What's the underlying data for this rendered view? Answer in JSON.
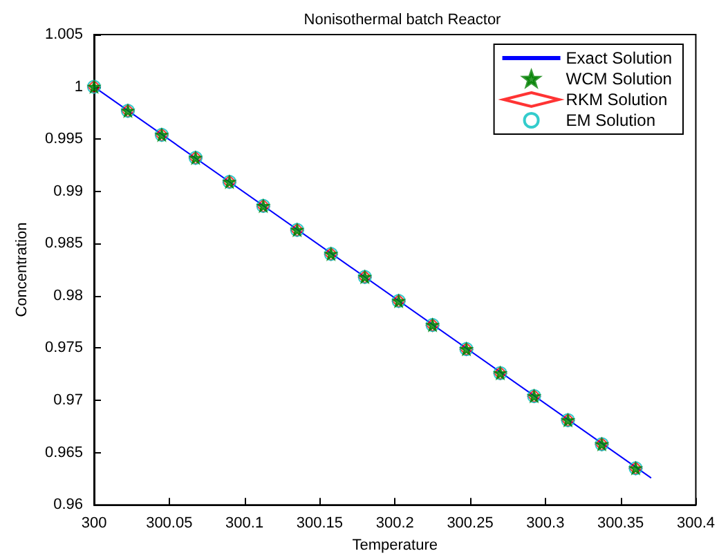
{
  "chart_data": {
    "type": "line",
    "title": "Nonisothermal batch Reactor",
    "xlabel": "Temperature",
    "ylabel": "Concentration",
    "xlim": [
      300,
      300.4
    ],
    "xticks": [
      300,
      300.05,
      300.1,
      300.15,
      300.2,
      300.25,
      300.3,
      300.35,
      300.4
    ],
    "ylim": [
      0.96,
      1.005
    ],
    "yticks": [
      0.96,
      0.965,
      0.97,
      0.975,
      0.98,
      0.985,
      0.99,
      0.995,
      1,
      1.005
    ],
    "grid": false,
    "legend": "top right",
    "series": [
      {
        "name": "Exact Solution",
        "color": "#0000ff",
        "marker": "none",
        "x": [
          300,
          300.37
        ],
        "values": [
          1,
          0.9626
        ]
      },
      {
        "name": "WCM Solution",
        "type": "scatter",
        "color": "#008000",
        "marker": "star",
        "x": [
          300,
          300.0225,
          300.045,
          300.0675,
          300.09,
          300.1125,
          300.135,
          300.1575,
          300.18,
          300.2025,
          300.225,
          300.2475,
          300.27,
          300.2925,
          300.315,
          300.3375,
          300.36
        ],
        "values": [
          1,
          0.9977,
          0.9954,
          0.9932,
          0.9909,
          0.9886,
          0.9863,
          0.984,
          0.9818,
          0.9795,
          0.9772,
          0.9749,
          0.9726,
          0.9704,
          0.9681,
          0.9658,
          0.9635
        ]
      },
      {
        "name": "RKM Solution",
        "type": "scatter",
        "color": "#ff0000",
        "marker": "diamond",
        "x": [
          300,
          300.0225,
          300.045,
          300.0675,
          300.09,
          300.1125,
          300.135,
          300.1575,
          300.18,
          300.2025,
          300.225,
          300.2475,
          300.27,
          300.2925,
          300.315,
          300.3375,
          300.36
        ],
        "values": [
          1,
          0.9977,
          0.9954,
          0.9932,
          0.9909,
          0.9886,
          0.9863,
          0.984,
          0.9818,
          0.9795,
          0.9772,
          0.9749,
          0.9726,
          0.9704,
          0.9681,
          0.9658,
          0.9635
        ]
      },
      {
        "name": "EM Solution",
        "type": "scatter",
        "color": "#00bfbf",
        "marker": "circle",
        "x": [
          300,
          300.0225,
          300.045,
          300.0675,
          300.09,
          300.1125,
          300.135,
          300.1575,
          300.18,
          300.2025,
          300.225,
          300.2475,
          300.27,
          300.2925,
          300.315,
          300.3375,
          300.36
        ],
        "values": [
          1,
          0.9977,
          0.9954,
          0.9932,
          0.9909,
          0.9886,
          0.9863,
          0.984,
          0.9818,
          0.9795,
          0.9772,
          0.9749,
          0.9726,
          0.9704,
          0.9681,
          0.9658,
          0.9635
        ]
      }
    ]
  }
}
